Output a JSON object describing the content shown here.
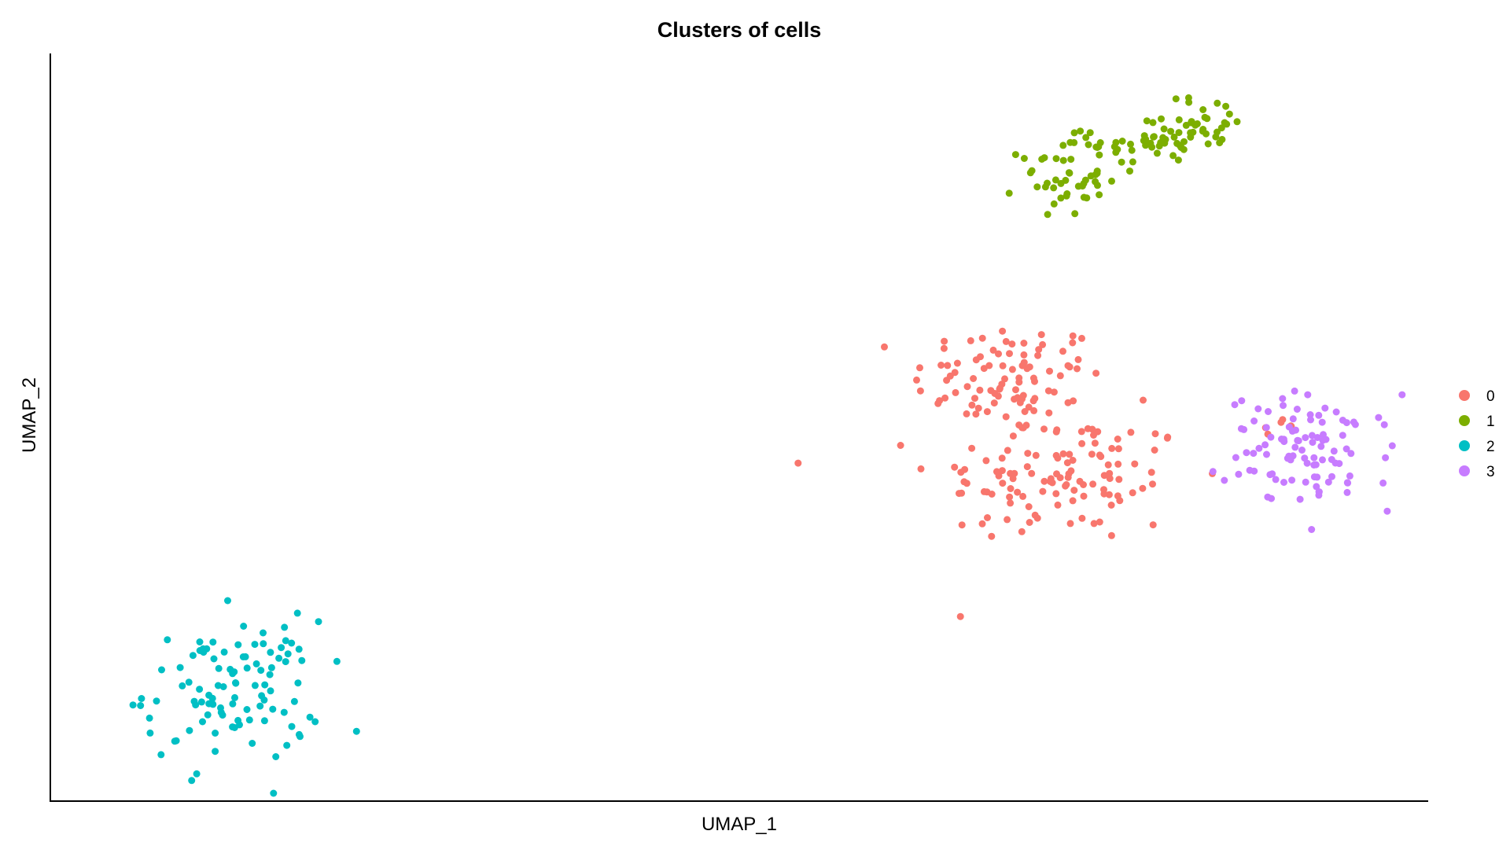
{
  "chart_data": {
    "type": "scatter",
    "title": "Clusters of cells",
    "xlabel": "UMAP_1",
    "ylabel": "UMAP_2",
    "xlim": [
      0,
      100
    ],
    "ylim": [
      0,
      100
    ],
    "grid": false,
    "ticks": false,
    "legend": "right",
    "series": [
      {
        "name": "0",
        "color": "#F8766D",
        "centers": [
          [
            70.5,
            57,
            4.6,
            5.2,
            95
          ],
          [
            74.5,
            42.5,
            6.2,
            6.0,
            115
          ],
          [
            91.2,
            50.3,
            0.8,
            0.7,
            6
          ]
        ]
      },
      {
        "name": "1",
        "color": "#7CAE00",
        "centers": [
          [
            74.5,
            86.5,
            2.0,
            3.5,
            45
          ],
          [
            81.5,
            91.5,
            3.0,
            2.2,
            45
          ],
          [
            85.5,
            94.5,
            1.9,
            2.5,
            30
          ]
        ]
      },
      {
        "name": "2",
        "color": "#00BFC4",
        "centers": [
          [
            11.5,
            11.5,
            4.2,
            6.5,
            105
          ]
        ]
      },
      {
        "name": "3",
        "color": "#C77CFF",
        "centers": [
          [
            93.5,
            46.5,
            4.0,
            5.2,
            100
          ]
        ]
      }
    ]
  }
}
